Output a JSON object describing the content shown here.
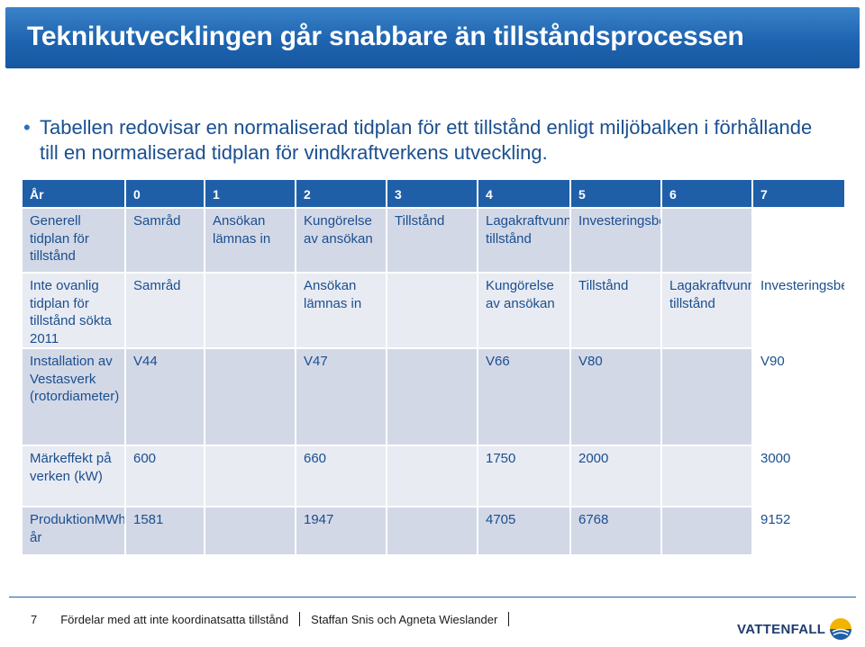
{
  "slide": {
    "title": "Teknikutvecklingen går snabbare än tillståndsprocessen",
    "bullet": "Tabellen redovisar en normaliserad tidplan för ett tillstånd enligt miljöbalken i förhållande till en normaliserad tidplan för vindkraftverkens utveckling."
  },
  "table": {
    "header": [
      "År",
      "0",
      "1",
      "2",
      "3",
      "4",
      "5",
      "6",
      "7"
    ],
    "rows": [
      {
        "label": "Generell tidplan för tillstånd",
        "cells": [
          "Samråd",
          "Ansökan lämnas in",
          "Kungörelse av ansökan",
          "Tillstånd",
          "Lagakraftvunnet tillstånd",
          "Investeringsbeslut",
          "",
          ""
        ]
      },
      {
        "label": "Inte ovanlig tidplan för tillstånd sökta 2011",
        "cells": [
          "Samråd",
          "",
          "Ansökan lämnas in",
          "",
          "Kungörelse av ansökan",
          "Tillstånd",
          "Lagakraftvunnet tillstånd",
          "Investeringsbeslut"
        ]
      },
      {
        "label": "Installation av Vestasverk (rotordiameter)",
        "cells": [
          "V44",
          "",
          "V47",
          "",
          "V66",
          "V80",
          "",
          "V90"
        ]
      },
      {
        "label": "Märkeffekt på verken (kW)",
        "cells": [
          "600",
          "",
          "660",
          "",
          "1750",
          "2000",
          "",
          "3000"
        ]
      },
      {
        "label": "ProduktionMWh/år",
        "cells": [
          "1581",
          "",
          "1947",
          "",
          "4705",
          "6768",
          "",
          "9152"
        ]
      }
    ]
  },
  "footer": {
    "page_number": "7",
    "text1": "Fördelar med att inte koordinatsatta tillstånd",
    "text2": "Staffan Snis och Agneta Wieslander"
  },
  "logo": {
    "text": "VATTENFALL",
    "icon": "vattenfall-logo-icon"
  },
  "colors": {
    "title_bg": "#1f5fa8",
    "header_bg": "#1f5fa8",
    "row_dark": "#d3d8e7",
    "row_light": "#e9ebf3",
    "text": "#1a4f8f"
  }
}
